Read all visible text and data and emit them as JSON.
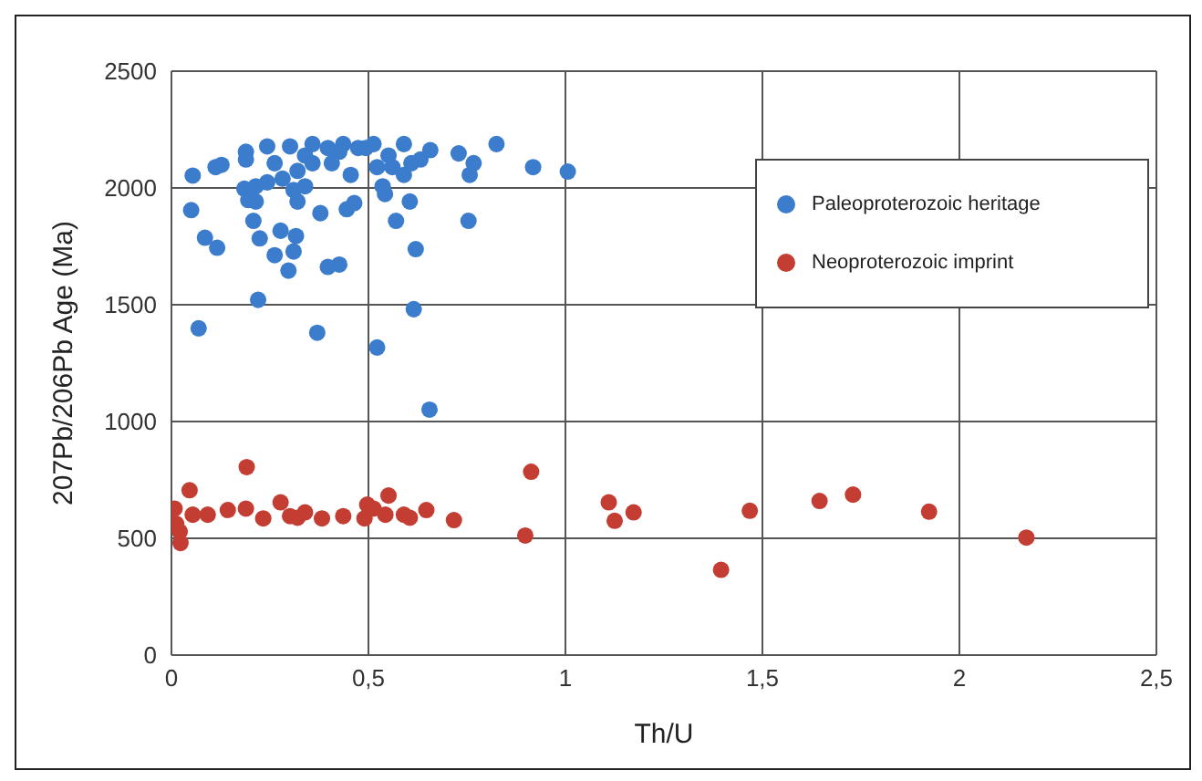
{
  "chart_data": {
    "type": "scatter",
    "xlabel": "Th/U",
    "ylabel": "207Pb/206Pb  Age (Ma)",
    "xlim": [
      0,
      2.5
    ],
    "xticks": [
      0,
      {
        "value": 0.5,
        "label": "0,5"
      },
      1,
      {
        "value": 1.5,
        "label": "1,5"
      },
      2,
      {
        "value": 2.5,
        "label": "2,5"
      }
    ],
    "ylim": [
      0,
      2500
    ],
    "yticks": [
      0,
      500,
      1000,
      1500,
      2000,
      2500
    ],
    "grid": true,
    "legend": "top right",
    "marker": "circle",
    "series": [
      {
        "name": "Paleoproterozoic heritage",
        "color": "#3b7dcc",
        "x": [
          0.054,
          0.05,
          0.085,
          0.116,
          0.069,
          0.112,
          0.127,
          0.189,
          0.189,
          0.243,
          0.185,
          0.195,
          0.214,
          0.208,
          0.224,
          0.22,
          0.262,
          0.277,
          0.297,
          0.31,
          0.316,
          0.301,
          0.282,
          0.32,
          0.339,
          0.358,
          0.378,
          0.37,
          0.397,
          0.426,
          0.397,
          0.407,
          0.436,
          0.445,
          0.464,
          0.455,
          0.493,
          0.513,
          0.522,
          0.536,
          0.542,
          0.551,
          0.522,
          0.57,
          0.59,
          0.605,
          0.609,
          0.62,
          0.615,
          0.632,
          0.657,
          0.655,
          0.729,
          0.754,
          0.757,
          0.767,
          0.825,
          0.918,
          1.006,
          0.262,
          0.32,
          0.358,
          0.243,
          0.31,
          0.426,
          0.474,
          0.561,
          0.59,
          0.339,
          0.214
        ],
        "values": [
          2053,
          1905,
          1787,
          1744,
          1399,
          2089,
          2099,
          2155,
          2122,
          2178,
          1997,
          1948,
          2007,
          1859,
          1784,
          1521,
          1712,
          1817,
          1646,
          1728,
          1794,
          2178,
          2040,
          1942,
          2007,
          2188,
          1892,
          1380,
          1662,
          1672,
          2171,
          2106,
          2188,
          1909,
          1935,
          2056,
          2171,
          2188,
          2089,
          2007,
          1974,
          2139,
          1317,
          1859,
          2188,
          1942,
          2106,
          1738,
          1481,
          2122,
          2162,
          1051,
          2148,
          1859,
          2056,
          2106,
          2188,
          2089,
          2070,
          2106,
          2073,
          2106,
          2024,
          1991,
          2155,
          2171,
          2089,
          2056,
          2139,
          1942
        ]
      },
      {
        "name": "Neoproterozoic imprint",
        "color": "#c43d33",
        "x": [
          0.008,
          0.012,
          0.023,
          0.046,
          0.021,
          0.054,
          0.092,
          0.143,
          0.189,
          0.191,
          0.233,
          0.277,
          0.301,
          0.339,
          0.382,
          0.436,
          0.49,
          0.497,
          0.551,
          0.59,
          0.605,
          0.647,
          0.717,
          0.898,
          0.913,
          1.11,
          1.125,
          1.173,
          1.395,
          1.468,
          1.645,
          1.73,
          1.923,
          2.17,
          0.513,
          0.543,
          0.32
        ],
        "values": [
          627,
          562,
          480,
          706,
          529,
          601,
          601,
          621,
          627,
          805,
          585,
          654,
          595,
          611,
          585,
          595,
          585,
          644,
          683,
          601,
          588,
          621,
          578,
          512,
          785,
          654,
          575,
          611,
          365,
          618,
          660,
          687,
          614,
          503,
          627,
          601,
          588
        ]
      }
    ]
  }
}
